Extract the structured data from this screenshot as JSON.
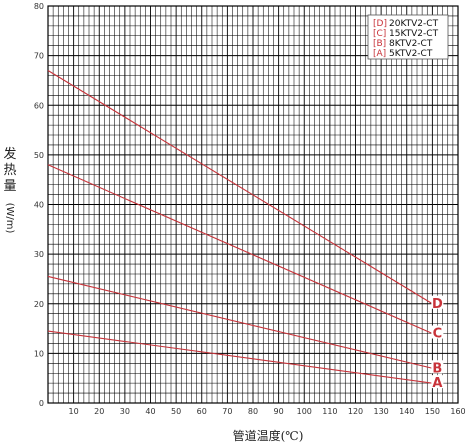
{
  "chart_data": {
    "type": "line",
    "title": "",
    "xlabel": "管道温度(℃)",
    "ylabel_chars": [
      "发",
      "热",
      "量"
    ],
    "ylabel_unit": "(W/m)",
    "xlim": [
      0,
      160
    ],
    "ylim": [
      0,
      80
    ],
    "x_ticks": [
      10,
      20,
      30,
      40,
      50,
      60,
      70,
      80,
      90,
      100,
      110,
      120,
      130,
      140,
      150,
      160
    ],
    "y_ticks": [
      0,
      10,
      20,
      30,
      40,
      50,
      60,
      70,
      80
    ],
    "grid": true,
    "legend_position": "top-right",
    "line_color": "#c8333a",
    "series": [
      {
        "key": "[D]",
        "name": "20KTV2-CT",
        "end_label": "D",
        "x": [
          0,
          150
        ],
        "y": [
          67,
          20
        ]
      },
      {
        "key": "[C]",
        "name": "15KTV2-CT",
        "end_label": "C",
        "x": [
          0,
          150
        ],
        "y": [
          48,
          14
        ]
      },
      {
        "key": "[B]",
        "name": "8KTV2-CT",
        "end_label": "B",
        "x": [
          0,
          150
        ],
        "y": [
          25.5,
          7
        ]
      },
      {
        "key": "[A]",
        "name": "5KTV2-CT",
        "end_label": "A",
        "x": [
          0,
          150
        ],
        "y": [
          14.5,
          4
        ]
      }
    ]
  }
}
